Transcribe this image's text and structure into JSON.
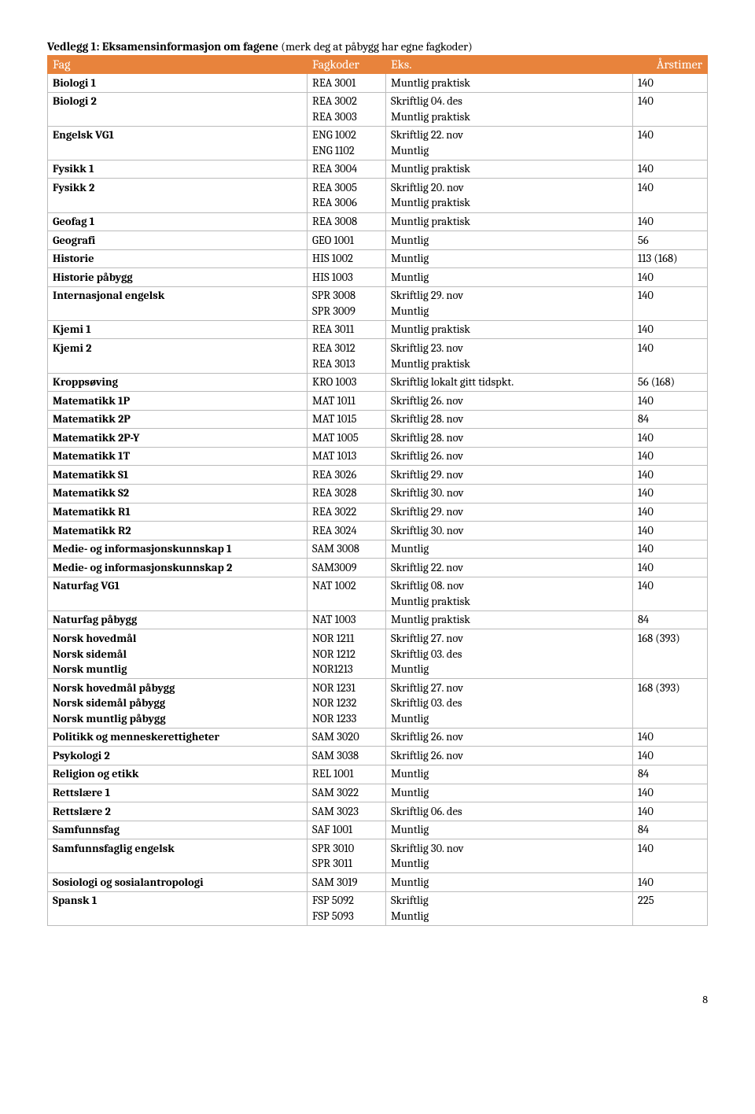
{
  "title": "Vedlegg 1: Eksamensinformasjon om fagene",
  "title_note": " (merk deg at påbygg har egne fagkoder)",
  "columns": [
    "Fag",
    "Fagkoder",
    "Eks.",
    "Årstimer"
  ],
  "footer_page": "8",
  "rows": [
    {
      "fag": "Biologi 1",
      "kode": [
        "REA 3001"
      ],
      "eks": [
        "Muntlig praktisk"
      ],
      "timer": "140"
    },
    {
      "fag": "Biologi 2",
      "kode": [
        "REA 3002",
        "REA 3003"
      ],
      "eks": [
        "Skriftlig   04. des",
        "Muntlig praktisk"
      ],
      "timer": "140"
    },
    {
      "fag": "Engelsk VG1",
      "kode": [
        "ENG 1002",
        "ENG 1102"
      ],
      "eks": [
        "Skriftlig   22. nov",
        "Muntlig"
      ],
      "timer": "140"
    },
    {
      "fag": "Fysikk 1",
      "kode": [
        "REA 3004"
      ],
      "eks": [
        "Muntlig praktisk"
      ],
      "timer": "140"
    },
    {
      "fag": "Fysikk 2",
      "kode": [
        "REA 3005",
        "REA 3006"
      ],
      "eks": [
        "Skriftlig   20. nov",
        "Muntlig praktisk"
      ],
      "timer": "140"
    },
    {
      "fag": "Geofag 1",
      "kode": [
        "REA 3008"
      ],
      "eks": [
        "Muntlig praktisk"
      ],
      "timer": "140"
    },
    {
      "fag": "Geografi",
      "kode": [
        "GEO 1001"
      ],
      "eks": [
        "Muntlig"
      ],
      "timer": "56"
    },
    {
      "fag": "Historie",
      "kode": [
        "HIS 1002"
      ],
      "eks": [
        "Muntlig"
      ],
      "timer": "113 (168)"
    },
    {
      "fag": "Historie påbygg",
      "kode": [
        "HIS 1003"
      ],
      "eks": [
        "Muntlig"
      ],
      "timer": "140"
    },
    {
      "fag": "Internasjonal engelsk",
      "kode": [
        "SPR 3008",
        "SPR 3009"
      ],
      "eks": [
        "Skriftlig   29. nov",
        "Muntlig"
      ],
      "timer": "140"
    },
    {
      "fag": "Kjemi 1",
      "kode": [
        "REA 3011"
      ],
      "eks": [
        "Muntlig praktisk"
      ],
      "timer": "140"
    },
    {
      "fag": "Kjemi 2",
      "kode": [
        "REA 3012",
        "REA 3013"
      ],
      "eks": [
        "Skriftlig   23. nov",
        "Muntlig praktisk"
      ],
      "timer": "140"
    },
    {
      "fag": "Kroppsøving",
      "kode": [
        "KRO 1003"
      ],
      "eks": [
        "Skriftlig   lokalt gitt tidspkt."
      ],
      "timer": "56 (168)"
    },
    {
      "fag": "Matematikk 1P",
      "kode": [
        "MAT 1011"
      ],
      "eks": [
        "Skriftlig   26. nov"
      ],
      "timer": "140"
    },
    {
      "fag": "Matematikk 2P",
      "kode": [
        "MAT 1015"
      ],
      "eks": [
        "Skriftlig   28. nov"
      ],
      "timer": "84"
    },
    {
      "fag": "Matematikk 2P-Y",
      "kode": [
        "MAT 1005"
      ],
      "eks": [
        "Skriftlig   28. nov"
      ],
      "timer": "140"
    },
    {
      "fag": "Matematikk 1T",
      "kode": [
        "MAT 1013"
      ],
      "eks": [
        "Skriftlig   26. nov"
      ],
      "timer": "140"
    },
    {
      "fag": "Matematikk S1",
      "kode": [
        "REA 3026"
      ],
      "eks": [
        "Skriftlig   29. nov"
      ],
      "timer": "140"
    },
    {
      "fag": "Matematikk S2",
      "kode": [
        "REA 3028"
      ],
      "eks": [
        "Skriftlig   30. nov"
      ],
      "timer": "140"
    },
    {
      "fag": "Matematikk R1",
      "kode": [
        "REA 3022"
      ],
      "eks": [
        "Skriftlig   29. nov"
      ],
      "timer": "140"
    },
    {
      "fag": "Matematikk R2",
      "kode": [
        "REA 3024"
      ],
      "eks": [
        "Skriftlig   30. nov"
      ],
      "timer": "140"
    },
    {
      "fag": "Medie- og informasjonskunnskap 1",
      "kode": [
        "SAM 3008"
      ],
      "eks": [
        "Muntlig"
      ],
      "timer": "140"
    },
    {
      "fag": "Medie- og informasjonskunnskap 2",
      "kode": [
        "SAM3009"
      ],
      "eks": [
        "Skriftlig   22. nov"
      ],
      "timer": "140"
    },
    {
      "fag": "Naturfag VG1",
      "kode": [
        "NAT 1002"
      ],
      "eks": [
        "Skriftlig   08. nov",
        "Muntlig praktisk"
      ],
      "timer": "140"
    },
    {
      "fag": "Naturfag påbygg",
      "kode": [
        "NAT 1003"
      ],
      "eks": [
        "Muntlig praktisk"
      ],
      "timer": "84"
    },
    {
      "fag": [
        "Norsk hovedmål",
        "Norsk sidemål",
        "Norsk muntlig"
      ],
      "kode": [
        "NOR 1211",
        "NOR 1212",
        "NOR1213"
      ],
      "eks": [
        "Skriftlig   27. nov",
        "Skriftlig   03. des",
        "Muntlig"
      ],
      "timer": "168 (393)"
    },
    {
      "fag": [
        "Norsk hovedmål påbygg",
        "Norsk sidemål påbygg",
        "Norsk muntlig påbygg"
      ],
      "kode": [
        "NOR 1231",
        "NOR 1232",
        "NOR 1233"
      ],
      "eks": [
        "Skriftlig   27. nov",
        "Skriftlig   03. des",
        "Muntlig"
      ],
      "timer": "168 (393)"
    },
    {
      "fag": "Politikk og menneskerettigheter",
      "kode": [
        "SAM 3020"
      ],
      "eks": [
        "Skriftlig   26. nov"
      ],
      "timer": "140"
    },
    {
      "fag": "Psykologi 2",
      "kode": [
        "SAM 3038"
      ],
      "eks": [
        "Skriftlig   26. nov"
      ],
      "timer": "140"
    },
    {
      "fag": "Religion og etikk",
      "kode": [
        "REL 1001"
      ],
      "eks": [
        "Muntlig"
      ],
      "timer": "84"
    },
    {
      "fag": "Rettslære 1",
      "kode": [
        "SAM 3022"
      ],
      "eks": [
        "Muntlig"
      ],
      "timer": "140"
    },
    {
      "fag": "Rettslære 2",
      "kode": [
        "SAM 3023"
      ],
      "eks": [
        "Skriftlig   06. des"
      ],
      "timer": "140"
    },
    {
      "fag": "Samfunnsfag",
      "kode": [
        "SAF 1001"
      ],
      "eks": [
        "Muntlig"
      ],
      "timer": "84"
    },
    {
      "fag": "Samfunnsfaglig engelsk",
      "kode": [
        "SPR 3010",
        "SPR 3011"
      ],
      "eks": [
        "Skriftlig   30. nov",
        "Muntlig"
      ],
      "timer": "140"
    },
    {
      "fag": "Sosiologi og sosialantropologi",
      "kode": [
        "SAM 3019"
      ],
      "eks": [
        "Muntlig"
      ],
      "timer": "140"
    },
    {
      "fag": "Spansk 1",
      "kode": [
        "FSP 5092",
        "FSP 5093"
      ],
      "eks": [
        "Skriftlig",
        "Muntlig"
      ],
      "timer": "225"
    }
  ]
}
